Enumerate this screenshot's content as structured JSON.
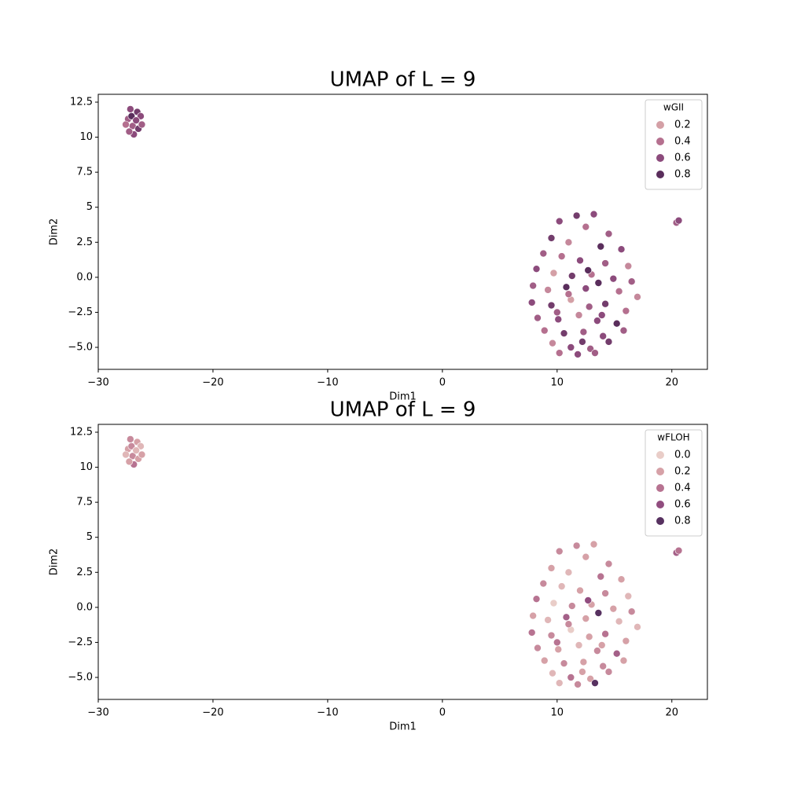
{
  "chart_data": [
    {
      "type": "scatter",
      "title": "UMAP of L = 9",
      "xlabel": "Dim1",
      "ylabel": "Dim2",
      "xlim": [
        -30,
        23.1
      ],
      "ylim": [
        -6.57,
        13.06
      ],
      "xticks": [
        {
          "value": -30,
          "label": "−30"
        },
        {
          "value": -20,
          "label": "−20"
        },
        {
          "value": -10,
          "label": "−10"
        },
        0,
        10,
        20
      ],
      "yticks": [
        {
          "value": -5,
          "label": "−5.0"
        },
        {
          "value": -2.5,
          "label": "−2.5"
        },
        {
          "value": 0,
          "label": "0.0"
        },
        2.5,
        5,
        7.5,
        10,
        12.5
      ],
      "legend_title": "wGII",
      "legend_values": [
        0.2,
        0.4,
        0.6,
        0.8
      ],
      "legend_colors": [
        "#d4a0a6",
        "#b5708f",
        "#8c4b7c",
        "#5a2e5c"
      ],
      "legend": "upper right",
      "x": [
        -27.2,
        -26.6,
        -27.4,
        -26.3,
        -27.0,
        -26.5,
        -27.6,
        -26.9,
        -26.2,
        -27.1,
        -26.7,
        -27.3,
        20.4,
        20.6,
        11.7,
        13.2,
        10.2,
        12.5,
        14.5,
        9.5,
        11.0,
        13.8,
        15.6,
        8.8,
        10.4,
        12.0,
        14.2,
        16.2,
        8.2,
        9.7,
        11.3,
        13.0,
        14.9,
        16.5,
        7.9,
        9.2,
        10.8,
        12.5,
        13.6,
        15.4,
        17.0,
        7.8,
        9.5,
        11.2,
        12.8,
        14.2,
        16.0,
        8.3,
        10.1,
        11.9,
        13.5,
        15.2,
        8.9,
        10.6,
        12.3,
        14.0,
        15.8,
        9.6,
        11.2,
        12.9,
        14.5,
        10.2,
        11.8,
        13.3,
        12.7,
        11.0,
        13.9,
        10.0,
        12.2
      ],
      "y": [
        12.0,
        11.8,
        11.3,
        11.5,
        10.8,
        10.6,
        10.9,
        10.2,
        10.9,
        11.5,
        11.2,
        10.4,
        3.9,
        4.05,
        4.4,
        4.5,
        4.0,
        3.6,
        3.1,
        2.8,
        2.5,
        2.2,
        2.0,
        1.7,
        1.5,
        1.2,
        1.0,
        0.8,
        0.6,
        0.3,
        0.1,
        0.2,
        -0.1,
        -0.3,
        -0.6,
        -0.9,
        -0.7,
        -0.8,
        -0.4,
        -1.0,
        -1.4,
        -1.8,
        -2.0,
        -1.6,
        -2.1,
        -1.9,
        -2.4,
        -2.9,
        -3.0,
        -2.7,
        -3.1,
        -3.3,
        -3.8,
        -4.0,
        -3.9,
        -4.2,
        -3.8,
        -4.7,
        -5.0,
        -5.1,
        -4.6,
        -5.4,
        -5.5,
        -5.4,
        0.5,
        -1.2,
        -2.7,
        -2.5,
        -4.6
      ],
      "hue": [
        0.6,
        0.7,
        0.5,
        0.6,
        0.5,
        0.7,
        0.4,
        0.6,
        0.5,
        0.8,
        0.6,
        0.5,
        0.5,
        0.6,
        0.7,
        0.6,
        0.6,
        0.4,
        0.5,
        0.7,
        0.3,
        0.8,
        0.6,
        0.5,
        0.4,
        0.6,
        0.5,
        0.3,
        0.6,
        0.2,
        0.7,
        0.4,
        0.6,
        0.5,
        0.5,
        0.3,
        0.8,
        0.6,
        0.9,
        0.4,
        0.3,
        0.6,
        0.7,
        0.2,
        0.5,
        0.7,
        0.4,
        0.5,
        0.6,
        0.3,
        0.6,
        0.8,
        0.4,
        0.7,
        0.5,
        0.6,
        0.5,
        0.3,
        0.6,
        0.5,
        0.7,
        0.4,
        0.6,
        0.5,
        0.8,
        0.4,
        0.6,
        0.5,
        0.7
      ]
    },
    {
      "type": "scatter",
      "title": "UMAP of L = 9",
      "xlabel": "Dim1",
      "ylabel": "Dim2",
      "xlim": [
        -30,
        23.1
      ],
      "ylim": [
        -6.57,
        13.06
      ],
      "xticks": [
        {
          "value": -30,
          "label": "−30"
        },
        {
          "value": -20,
          "label": "−20"
        },
        {
          "value": -10,
          "label": "−10"
        },
        0,
        10,
        20
      ],
      "yticks": [
        {
          "value": -5,
          "label": "−5.0"
        },
        {
          "value": -2.5,
          "label": "−2.5"
        },
        {
          "value": 0,
          "label": "0.0"
        },
        2.5,
        5,
        7.5,
        10,
        12.5
      ],
      "legend_title": "wFLOH",
      "legend_values": [
        {
          "value": 0,
          "label": "0.0"
        },
        0.2,
        0.4,
        0.6,
        0.8
      ],
      "legend_colors": [
        "#e9cdc8",
        "#d6a1a7",
        "#b77391",
        "#914d7f",
        "#573160"
      ],
      "legend": "upper right",
      "x": [
        -27.2,
        -26.6,
        -27.4,
        -26.3,
        -27.0,
        -26.5,
        -27.6,
        -26.9,
        -26.2,
        -27.1,
        -26.7,
        -27.3,
        20.4,
        20.6,
        11.7,
        13.2,
        10.2,
        12.5,
        14.5,
        9.5,
        11.0,
        13.8,
        15.6,
        8.8,
        10.4,
        12.0,
        14.2,
        16.2,
        8.2,
        9.7,
        11.3,
        13.0,
        14.9,
        16.5,
        7.9,
        9.2,
        10.8,
        12.5,
        13.6,
        15.4,
        17.0,
        7.8,
        9.5,
        11.2,
        12.8,
        14.2,
        16.0,
        8.3,
        10.1,
        11.9,
        13.5,
        15.2,
        8.9,
        10.6,
        12.3,
        14.0,
        15.8,
        9.6,
        11.2,
        12.9,
        14.5,
        10.2,
        11.8,
        13.3,
        12.7,
        11.0,
        13.9,
        10.0,
        12.2
      ],
      "y": [
        12.0,
        11.8,
        11.3,
        11.5,
        10.8,
        10.6,
        10.9,
        10.2,
        10.9,
        11.5,
        11.2,
        10.4,
        3.9,
        4.05,
        4.4,
        4.5,
        4.0,
        3.6,
        3.1,
        2.8,
        2.5,
        2.2,
        2.0,
        1.7,
        1.5,
        1.2,
        1.0,
        0.8,
        0.6,
        0.3,
        0.1,
        0.2,
        -0.1,
        -0.3,
        -0.6,
        -0.9,
        -0.7,
        -0.8,
        -0.4,
        -1.0,
        -1.4,
        -1.8,
        -2.0,
        -1.6,
        -2.1,
        -1.9,
        -2.4,
        -2.9,
        -3.0,
        -2.7,
        -3.1,
        -3.3,
        -3.8,
        -4.0,
        -3.9,
        -4.2,
        -3.8,
        -4.7,
        -5.0,
        -5.1,
        -4.6,
        -5.4,
        -5.5,
        -5.4,
        0.5,
        -1.2,
        -2.7,
        -2.5,
        -4.6
      ],
      "hue": [
        0.3,
        0.2,
        0.2,
        0.1,
        0.3,
        0.2,
        0.1,
        0.4,
        0.2,
        0.3,
        0.1,
        0.2,
        0.5,
        0.4,
        0.3,
        0.2,
        0.3,
        0.2,
        0.3,
        0.2,
        0.1,
        0.4,
        0.2,
        0.3,
        0.1,
        0.2,
        0.3,
        0.1,
        0.4,
        0.0,
        0.3,
        0.2,
        0.2,
        0.3,
        0.2,
        0.1,
        0.5,
        0.2,
        0.9,
        0.1,
        0.1,
        0.4,
        0.3,
        0.0,
        0.2,
        0.4,
        0.2,
        0.3,
        0.2,
        0.1,
        0.3,
        0.5,
        0.2,
        0.3,
        0.2,
        0.3,
        0.2,
        0.1,
        0.4,
        0.2,
        0.3,
        0.1,
        0.3,
        0.8,
        0.6,
        0.3,
        0.2,
        0.4,
        0.2
      ]
    }
  ]
}
